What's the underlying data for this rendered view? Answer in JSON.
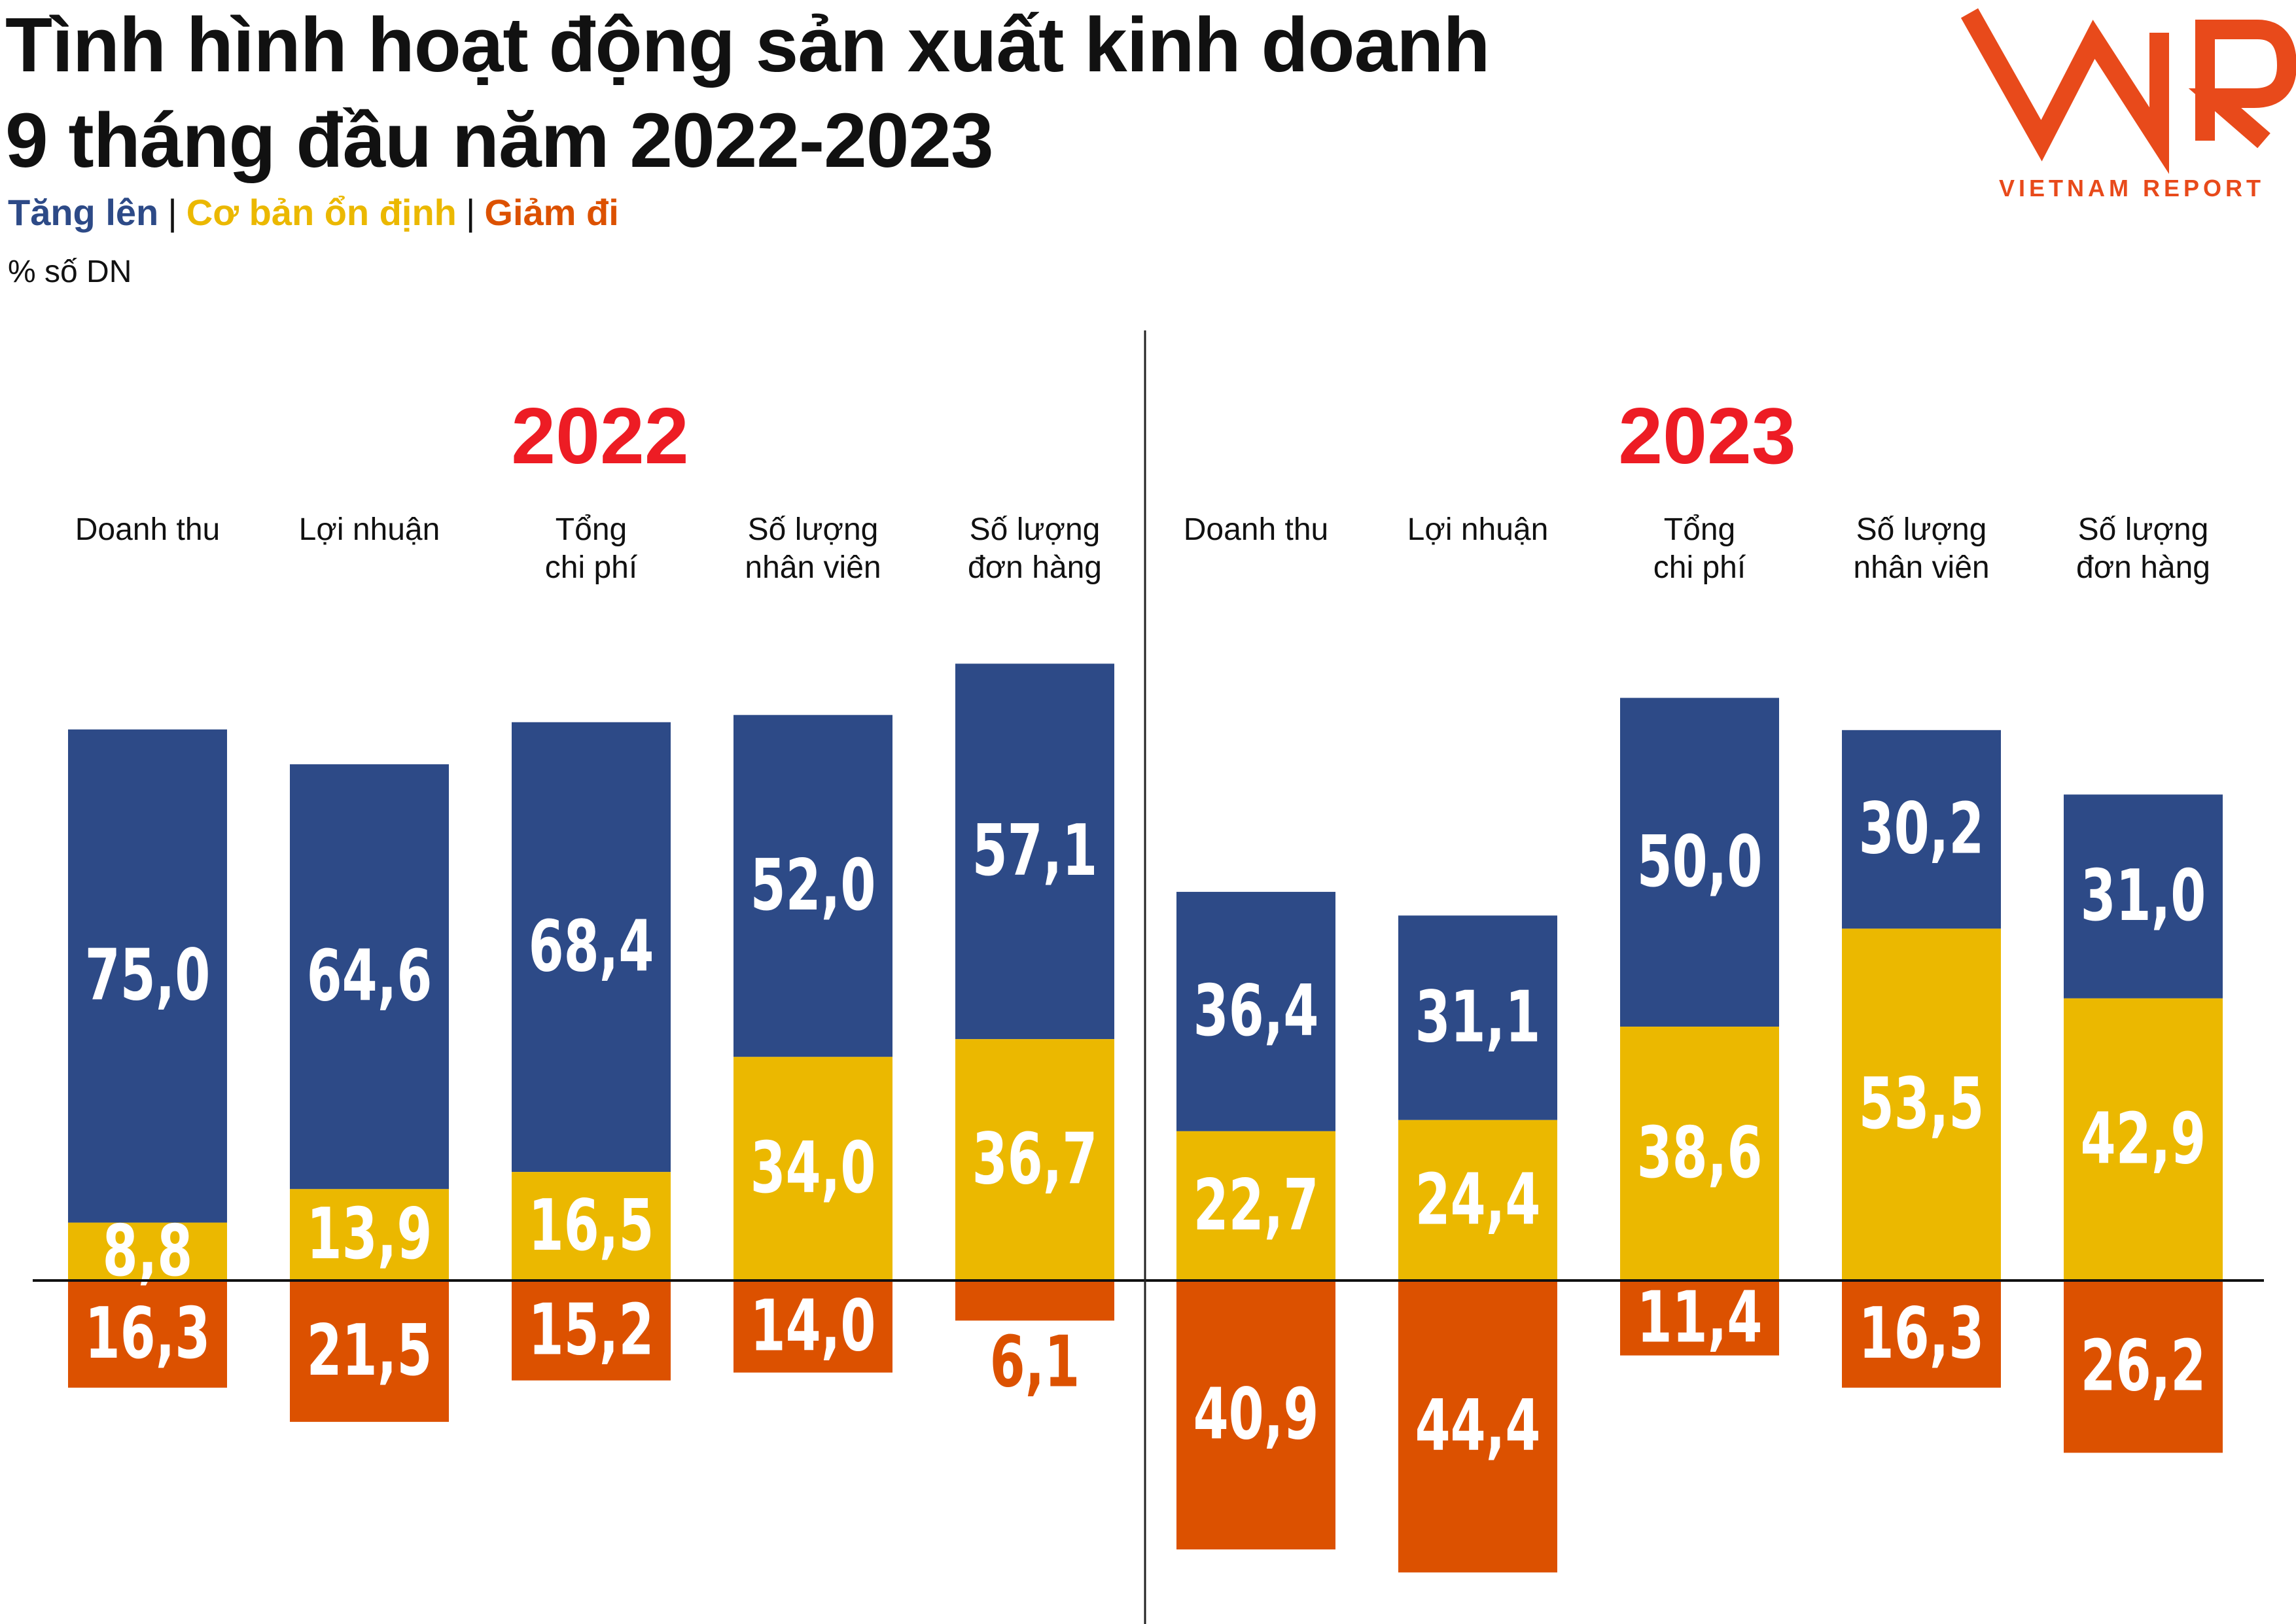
{
  "header": {
    "title_line1": "Tình hình hoạt động sản xuất kinh doanh",
    "title_line2": "9 tháng đầu năm 2022-2023",
    "unit": "% số DN"
  },
  "legend": {
    "increase": "Tăng lên",
    "stable": "Cơ bản ổn định",
    "decrease": "Giảm đi",
    "separator": "|"
  },
  "logo": {
    "letters": "VNR",
    "caption": "VIETNAM REPORT",
    "color": "#e84a1b"
  },
  "colors": {
    "increase": "#2d4a87",
    "stable": "#ebb800",
    "decrease": "#dc5100",
    "year": "#ed1c24"
  },
  "chart_data": {
    "type": "bar",
    "stacked": true,
    "unit": "% số DN",
    "categories": [
      "Doanh thu",
      "Lợi nhuận",
      "Tổng chi phí",
      "Số lượng nhân viên",
      "Số lượng đơn hàng"
    ],
    "category_label_lines": [
      [
        "Doanh thu"
      ],
      [
        "Lợi nhuận"
      ],
      [
        "Tổng",
        "chi phí"
      ],
      [
        "Số lượng",
        "nhân viên"
      ],
      [
        "Số lượng",
        "đơn hàng"
      ]
    ],
    "panels": [
      {
        "year": "2022",
        "series": [
          {
            "name": "Tăng lên",
            "values": [
              75.0,
              64.6,
              68.4,
              52.0,
              57.1
            ],
            "labels": [
              "75,0",
              "64,6",
              "68,4",
              "52,0",
              "57,1"
            ]
          },
          {
            "name": "Cơ bản ổn định",
            "values": [
              8.8,
              13.9,
              16.5,
              34.0,
              36.7
            ],
            "labels": [
              "8,8",
              "13,9",
              "16,5",
              "34,0",
              "36,7"
            ]
          },
          {
            "name": "Giảm đi",
            "values": [
              16.3,
              21.5,
              15.2,
              14.0,
              6.1
            ],
            "labels": [
              "16,3",
              "21,5",
              "15,2",
              "14,0",
              "6,1"
            ]
          }
        ]
      },
      {
        "year": "2023",
        "series": [
          {
            "name": "Tăng lên",
            "values": [
              36.4,
              31.1,
              50.0,
              30.2,
              31.0
            ],
            "labels": [
              "36,4",
              "31,1",
              "50,0",
              "30,2",
              "31,0"
            ]
          },
          {
            "name": "Cơ bản ổn định",
            "values": [
              22.7,
              24.4,
              38.6,
              53.5,
              42.9
            ],
            "labels": [
              "22,7",
              "24,4",
              "38,6",
              "53,5",
              "42,9"
            ]
          },
          {
            "name": "Giảm đi",
            "values": [
              40.9,
              44.4,
              11.4,
              16.3,
              26.2
            ],
            "labels": [
              "40,9",
              "44,4",
              "11,4",
              "16,3",
              "26,2"
            ]
          }
        ]
      }
    ]
  }
}
